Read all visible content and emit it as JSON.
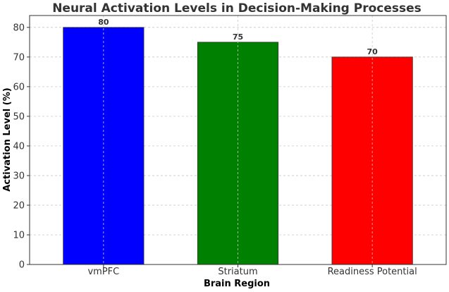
{
  "chart_data": {
    "type": "bar",
    "title": "Neural Activation Levels in Decision-Making Processes",
    "xlabel": "Brain Region",
    "ylabel": "Activation Level (%)",
    "categories": [
      "vmPFC",
      "Striatum",
      "Readiness Potential"
    ],
    "values": [
      80,
      75,
      70
    ],
    "data_labels": [
      "80",
      "75",
      "70"
    ],
    "colors": [
      "#0000ff",
      "#008000",
      "#ff0000"
    ],
    "ylim": [
      0,
      84
    ],
    "yticks": [
      0,
      10,
      20,
      30,
      40,
      50,
      60,
      70,
      80
    ],
    "grid": true,
    "legend": "none"
  }
}
